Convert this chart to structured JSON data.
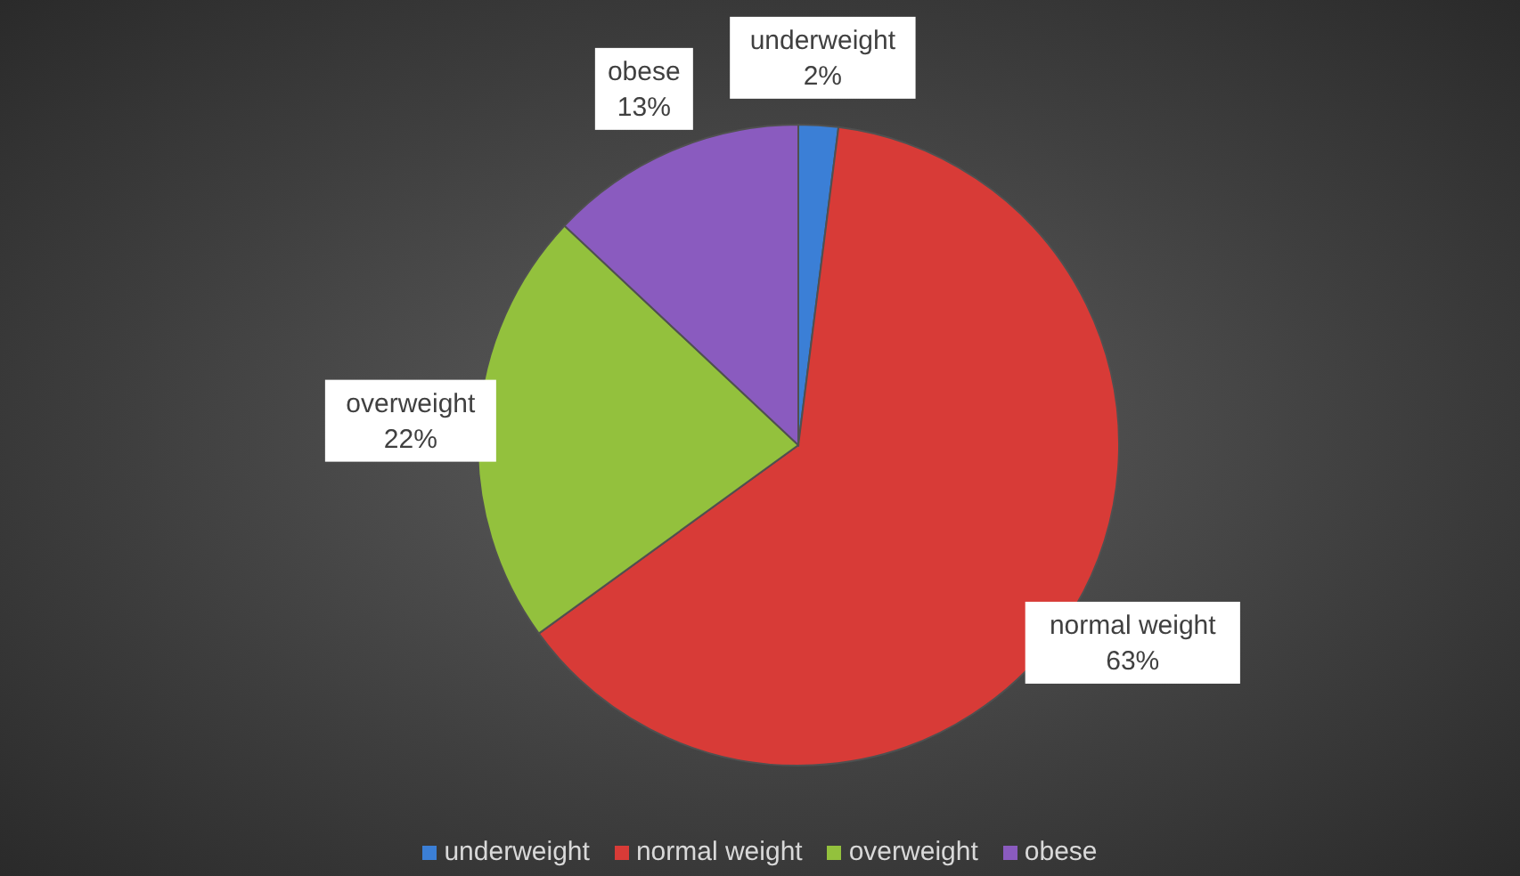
{
  "chart_data": {
    "type": "pie",
    "categories": [
      "underweight",
      "normal weight",
      "overweight",
      "obese"
    ],
    "values": [
      2,
      63,
      22,
      13
    ],
    "value_labels": [
      "2%",
      "63%",
      "22%",
      "13%"
    ],
    "colors": [
      "#3b7fd6",
      "#d83b37",
      "#93c13d",
      "#8a5bbf"
    ],
    "legend": "bottom"
  }
}
